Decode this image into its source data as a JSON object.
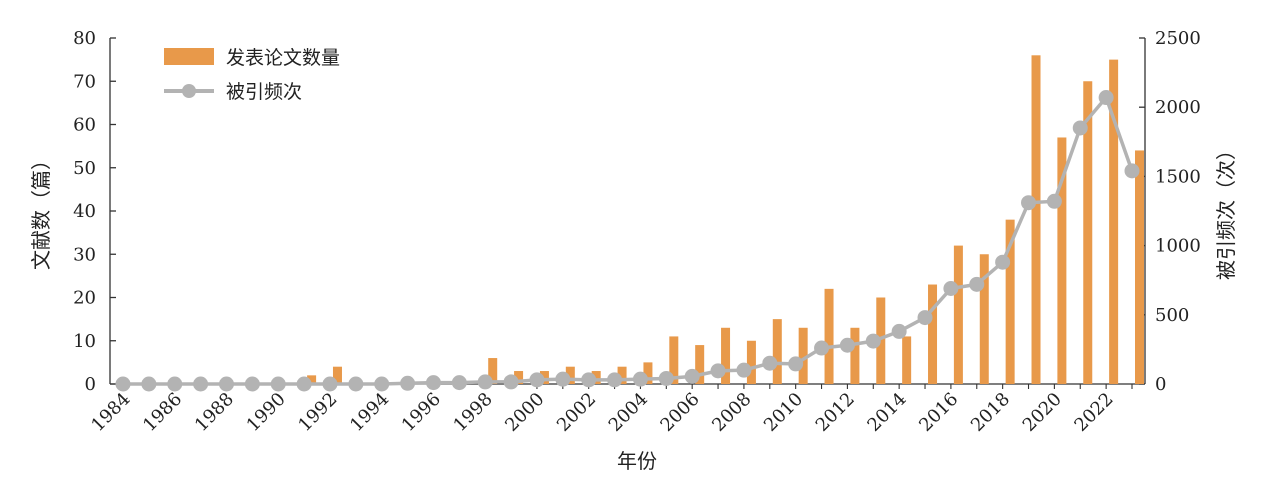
{
  "chart_data": {
    "type": "bar+line",
    "title": "",
    "xlabel": "年份",
    "ylabel_left": "文献数（篇）",
    "ylabel_right": "被引频次（次）",
    "ylim_left": [
      0,
      80
    ],
    "ylim_right": [
      0,
      2500
    ],
    "yticks_left": [
      "0",
      "10",
      "20",
      "30",
      "40",
      "50",
      "60",
      "70",
      "80"
    ],
    "yticks_right": [
      "0",
      "500",
      "1000",
      "1500",
      "2000",
      "2500"
    ],
    "x": [
      1984,
      1985,
      1986,
      1987,
      1988,
      1989,
      1990,
      1991,
      1992,
      1993,
      1994,
      1995,
      1996,
      1997,
      1998,
      1999,
      2000,
      2001,
      2002,
      2003,
      2004,
      2005,
      2006,
      2007,
      2008,
      2009,
      2010,
      2011,
      2012,
      2013,
      2014,
      2015,
      2016,
      2017,
      2018,
      2019,
      2020,
      2021,
      2022,
      2023
    ],
    "xtick_labels": [
      "1984",
      "1986",
      "1988",
      "1990",
      "1992",
      "1994",
      "1996",
      "1998",
      "2000",
      "2002",
      "2004",
      "2006",
      "2008",
      "2010",
      "2012",
      "2014",
      "2016",
      "2018",
      "2020",
      "2022"
    ],
    "legend_position": "top-left",
    "series": [
      {
        "name": "发表论文数量",
        "kind": "bar",
        "axis": "left",
        "color": "#E8994A",
        "values": [
          0,
          0,
          0,
          0,
          0,
          0,
          0,
          2,
          4,
          0,
          0,
          0,
          0,
          0,
          6,
          3,
          3,
          4,
          3,
          4,
          5,
          11,
          9,
          13,
          10,
          15,
          13,
          22,
          13,
          20,
          11,
          23,
          32,
          30,
          38,
          76,
          57,
          70,
          75,
          54
        ]
      },
      {
        "name": "被引频次",
        "kind": "line",
        "axis": "right",
        "color": "#B3B3B3",
        "values": [
          0,
          0,
          0,
          0,
          0,
          0,
          0,
          0,
          0,
          0,
          0,
          5,
          10,
          10,
          15,
          15,
          30,
          35,
          30,
          30,
          35,
          40,
          55,
          95,
          100,
          150,
          145,
          260,
          280,
          310,
          380,
          480,
          690,
          720,
          880,
          1310,
          1320,
          1850,
          2070,
          1540
        ]
      }
    ]
  }
}
